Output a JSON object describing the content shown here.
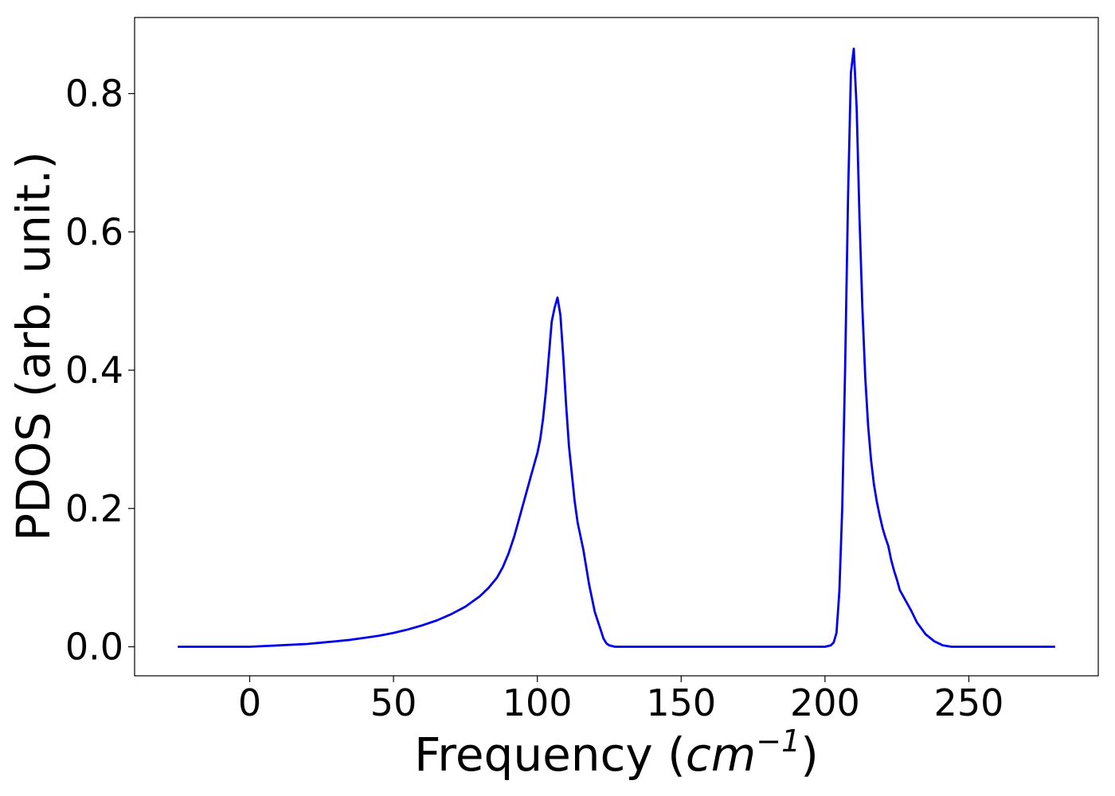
{
  "chart_data": {
    "type": "line",
    "title": "",
    "xlabel_prefix": "Frequency (",
    "xlabel_math": "cm",
    "xlabel_exponent": "−1",
    "xlabel_suffix": ")",
    "ylabel": "PDOS (arb. unit.)",
    "xlim": [
      -40,
      295
    ],
    "ylim": [
      -0.042,
      0.91
    ],
    "xticks": [
      0,
      50,
      100,
      150,
      200,
      250
    ],
    "xtick_labels": [
      "0",
      "50",
      "100",
      "150",
      "200",
      "250"
    ],
    "yticks": [
      0.0,
      0.2,
      0.4,
      0.6,
      0.8
    ],
    "ytick_labels": [
      "0.0",
      "0.2",
      "0.4",
      "0.6",
      "0.8"
    ],
    "grid": false,
    "legend": "none",
    "series": [
      {
        "color": "#0000ee",
        "x": [
          -25,
          -10,
          0,
          5,
          10,
          15,
          20,
          25,
          30,
          35,
          40,
          45,
          50,
          55,
          60,
          65,
          70,
          75,
          80,
          83,
          86,
          88,
          90,
          92,
          94,
          96,
          98,
          100,
          101,
          102,
          103,
          104,
          105,
          106,
          107,
          108,
          109,
          110,
          111,
          112,
          113,
          114,
          116,
          118,
          120,
          122,
          123,
          124,
          125,
          126,
          127,
          128,
          129,
          130,
          132,
          140,
          150,
          160,
          170,
          180,
          190,
          200,
          202,
          203,
          204,
          205,
          206,
          207,
          208,
          209,
          210,
          211,
          212,
          213,
          214,
          215,
          216,
          217,
          218,
          219,
          220,
          221,
          222,
          223,
          224,
          225,
          226,
          228,
          230,
          232,
          235,
          238,
          241,
          244,
          247,
          250,
          253,
          255,
          257,
          259,
          262,
          265,
          270,
          275,
          280
        ],
        "y": [
          0.0,
          0.0,
          0.0,
          0.001,
          0.002,
          0.003,
          0.004,
          0.006,
          0.008,
          0.01,
          0.013,
          0.016,
          0.02,
          0.025,
          0.031,
          0.038,
          0.047,
          0.058,
          0.073,
          0.085,
          0.1,
          0.115,
          0.135,
          0.16,
          0.19,
          0.22,
          0.25,
          0.28,
          0.3,
          0.33,
          0.37,
          0.42,
          0.47,
          0.49,
          0.505,
          0.48,
          0.42,
          0.35,
          0.29,
          0.25,
          0.21,
          0.18,
          0.14,
          0.09,
          0.05,
          0.025,
          0.012,
          0.005,
          0.002,
          0.001,
          0.0,
          0.0,
          0.0,
          0.0,
          0.0,
          0.0,
          0.0,
          0.0,
          0.0,
          0.0,
          0.0,
          0.0,
          0.002,
          0.006,
          0.02,
          0.08,
          0.2,
          0.4,
          0.65,
          0.83,
          0.865,
          0.78,
          0.62,
          0.49,
          0.39,
          0.32,
          0.27,
          0.235,
          0.21,
          0.19,
          0.172,
          0.158,
          0.146,
          0.126,
          0.11,
          0.097,
          0.082,
          0.067,
          0.052,
          0.035,
          0.018,
          0.008,
          0.002,
          0.0,
          0.0,
          0.0,
          0.0,
          0.0,
          0.0,
          0.0,
          0.0,
          0.0,
          0.0,
          0.0,
          0.0
        ]
      }
    ]
  }
}
